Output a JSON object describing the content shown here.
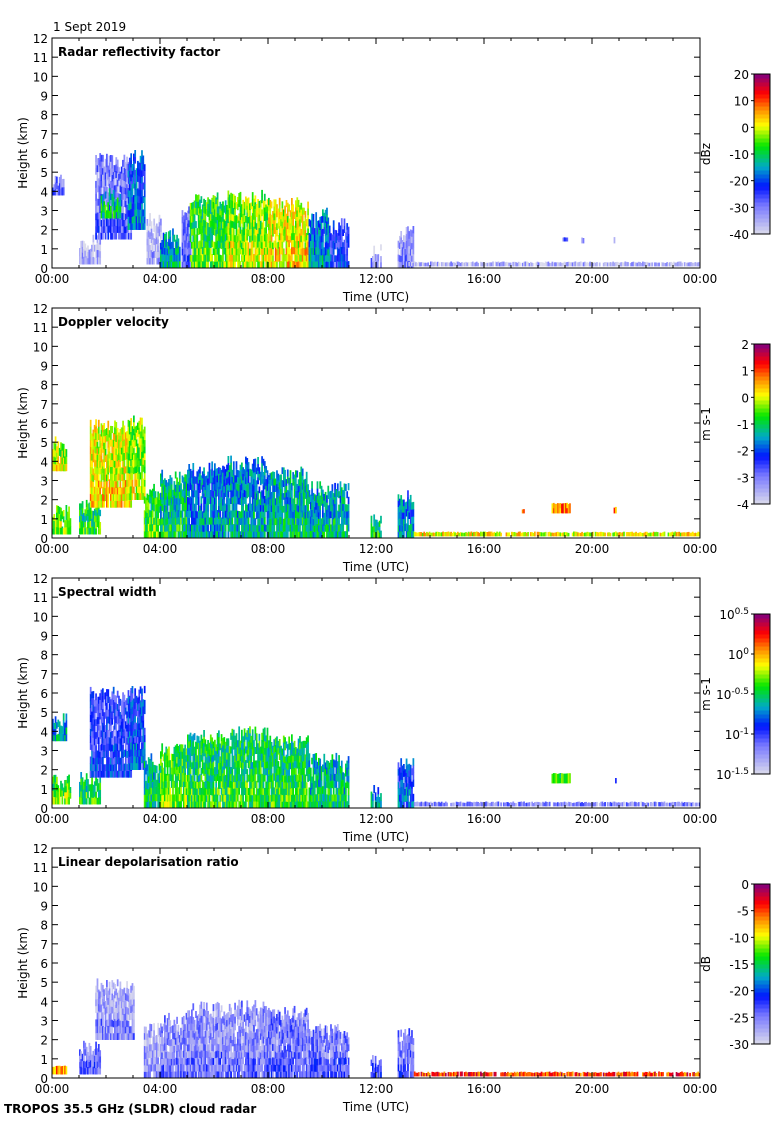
{
  "date_label": "1 Sept 2019",
  "footer": "TROPOS 35.5 GHz (SLDR) cloud radar",
  "chart_data": {
    "type": "heatmap",
    "x": {
      "label": "Time (UTC)",
      "range_hours": [
        0,
        24
      ],
      "tick_hours": [
        0,
        4,
        8,
        12,
        16,
        20,
        24
      ],
      "tick_labels": [
        "00:00",
        "04:00",
        "08:00",
        "12:00",
        "16:00",
        "20:00",
        "00:00"
      ]
    },
    "y": {
      "label": "Height (km)",
      "range": [
        0,
        12
      ],
      "ticks": [
        0,
        1,
        2,
        3,
        4,
        5,
        6,
        7,
        8,
        9,
        10,
        11,
        12
      ]
    },
    "panels": [
      {
        "title": "Radar reflectivity factor",
        "colorbar": {
          "label": "dBz",
          "range": [
            -40,
            20
          ],
          "ticks": [
            "20",
            "10",
            "0",
            "-10",
            "-20",
            "-30",
            "-40"
          ],
          "scale": "linear"
        },
        "cells": [
          [
            0.0,
            0.4,
            3.8,
            4.6,
            -30
          ],
          [
            1.0,
            1.8,
            0.2,
            1.4,
            -37
          ],
          [
            1.6,
            2.9,
            1.5,
            5.6,
            -30
          ],
          [
            1.8,
            2.5,
            2.6,
            3.8,
            -12
          ],
          [
            2.8,
            3.4,
            2.0,
            5.8,
            -20
          ],
          [
            3.5,
            4.0,
            0.2,
            2.5,
            -37
          ],
          [
            4.0,
            4.7,
            0.0,
            1.7,
            -15
          ],
          [
            4.8,
            5.1,
            0.0,
            3.0,
            -30
          ],
          [
            5.1,
            6.5,
            0.0,
            3.6,
            -8
          ],
          [
            6.5,
            8.0,
            0.0,
            3.7,
            -4
          ],
          [
            8.0,
            9.5,
            0.0,
            3.3,
            0
          ],
          [
            9.5,
            10.3,
            0.0,
            2.8,
            -18
          ],
          [
            10.3,
            11.0,
            0.0,
            2.2,
            -25
          ],
          [
            11.8,
            12.2,
            0.0,
            0.9,
            -35
          ],
          [
            12.8,
            13.4,
            0.0,
            2.0,
            -33
          ],
          [
            13.2,
            24.0,
            0.1,
            0.3,
            -38
          ],
          [
            18.9,
            19.1,
            1.4,
            1.6,
            -33
          ],
          [
            19.6,
            19.7,
            1.3,
            1.6,
            -38
          ],
          [
            20.8,
            20.9,
            1.3,
            1.6,
            -38
          ]
        ]
      },
      {
        "title": "Doppler velocity",
        "colorbar": {
          "label": "m s-1",
          "range": [
            -4,
            2
          ],
          "ticks": [
            "2",
            "1",
            "0",
            "-1",
            "-2",
            "-3",
            "-4"
          ],
          "scale": "linear"
        },
        "cells": [
          [
            0.0,
            0.5,
            3.5,
            5.0,
            -0.3
          ],
          [
            0.0,
            0.7,
            0.2,
            1.4,
            -0.6
          ],
          [
            1.0,
            1.8,
            0.2,
            1.6,
            -1.0
          ],
          [
            1.4,
            2.9,
            1.6,
            5.8,
            0.0
          ],
          [
            2.8,
            3.4,
            2.0,
            6.0,
            -0.3
          ],
          [
            3.4,
            4.0,
            0.0,
            2.5,
            -0.8
          ],
          [
            4.0,
            5.0,
            0.0,
            3.2,
            -1.2
          ],
          [
            5.0,
            6.5,
            0.0,
            3.6,
            -1.8
          ],
          [
            6.5,
            8.0,
            0.0,
            3.9,
            -1.6
          ],
          [
            8.0,
            9.5,
            0.0,
            3.4,
            -1.4
          ],
          [
            9.5,
            11.0,
            0.0,
            2.6,
            -1.5
          ],
          [
            11.8,
            12.2,
            0.0,
            0.9,
            -1.0
          ],
          [
            12.8,
            13.4,
            0.0,
            2.2,
            -1.8
          ],
          [
            13.4,
            24.0,
            0.1,
            0.3,
            -0.2
          ],
          [
            17.4,
            17.5,
            1.3,
            1.5,
            0.9
          ],
          [
            18.5,
            19.2,
            1.3,
            1.8,
            0.5
          ],
          [
            20.8,
            20.9,
            1.3,
            1.6,
            0.4
          ]
        ]
      },
      {
        "title": "Spectral width",
        "colorbar": {
          "label": "m s-1",
          "range": [
            -1.5,
            0.5
          ],
          "ticks": [
            "10^0.5",
            "10^0",
            "10^-0.5",
            "10^-1",
            "10^-1.5"
          ],
          "scale": "log10"
        },
        "cells": [
          [
            0.0,
            0.5,
            3.5,
            4.8,
            -0.7
          ],
          [
            0.0,
            0.7,
            0.2,
            1.4,
            -0.4
          ],
          [
            1.0,
            1.8,
            0.2,
            1.6,
            -0.5
          ],
          [
            1.4,
            2.9,
            1.6,
            6.0,
            -1.0
          ],
          [
            2.8,
            3.4,
            2.0,
            6.0,
            -0.9
          ],
          [
            3.4,
            4.0,
            0.0,
            2.5,
            -0.6
          ],
          [
            4.0,
            5.0,
            0.0,
            3.2,
            -0.4
          ],
          [
            5.0,
            6.5,
            0.0,
            3.7,
            -0.5
          ],
          [
            6.5,
            8.0,
            0.0,
            3.9,
            -0.5
          ],
          [
            8.0,
            9.5,
            0.0,
            3.5,
            -0.5
          ],
          [
            9.5,
            11.0,
            0.0,
            2.5,
            -0.6
          ],
          [
            11.8,
            12.2,
            0.0,
            0.9,
            -0.7
          ],
          [
            12.8,
            13.4,
            0.0,
            2.2,
            -0.9
          ],
          [
            13.4,
            24.0,
            0.1,
            0.3,
            -1.3
          ],
          [
            18.5,
            19.2,
            1.3,
            1.8,
            -0.5
          ],
          [
            20.8,
            20.9,
            1.3,
            1.6,
            -0.9
          ]
        ]
      },
      {
        "title": "Linear depolarisation ratio",
        "colorbar": {
          "label": "dB",
          "range": [
            -30,
            0
          ],
          "ticks": [
            "0",
            "-5",
            "-10",
            "-15",
            "-20",
            "-25",
            "-30"
          ],
          "scale": "linear"
        },
        "cells": [
          [
            0.0,
            0.5,
            0.2,
            0.6,
            -8
          ],
          [
            1.0,
            1.8,
            0.2,
            1.6,
            -25
          ],
          [
            1.6,
            3.0,
            2.0,
            4.8,
            -27
          ],
          [
            3.4,
            4.0,
            0.0,
            2.5,
            -27
          ],
          [
            4.0,
            5.0,
            0.0,
            3.0,
            -26
          ],
          [
            5.0,
            6.5,
            0.0,
            3.6,
            -26
          ],
          [
            6.5,
            8.0,
            0.0,
            3.7,
            -26
          ],
          [
            8.0,
            9.5,
            0.0,
            3.4,
            -25
          ],
          [
            9.5,
            11.0,
            0.0,
            2.5,
            -25
          ],
          [
            11.8,
            12.2,
            0.0,
            0.9,
            -24
          ],
          [
            12.8,
            13.4,
            0.0,
            2.2,
            -25
          ],
          [
            13.4,
            24.0,
            0.1,
            0.3,
            -6
          ]
        ]
      }
    ]
  }
}
